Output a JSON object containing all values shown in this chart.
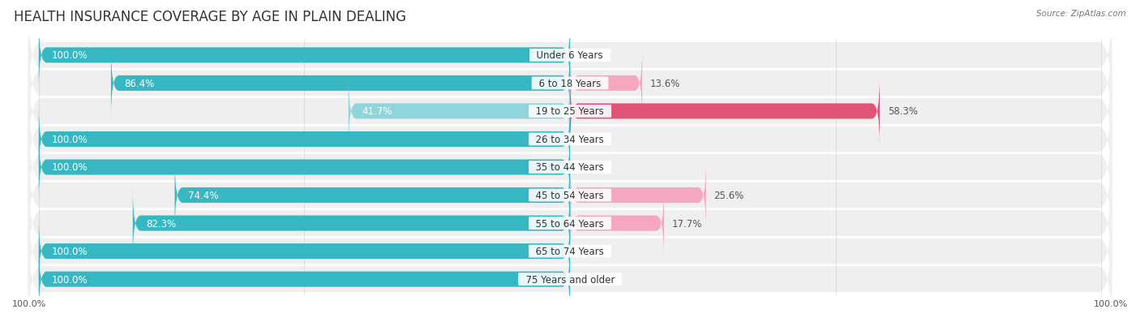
{
  "title": "HEALTH INSURANCE COVERAGE BY AGE IN PLAIN DEALING",
  "source": "Source: ZipAtlas.com",
  "categories": [
    "Under 6 Years",
    "6 to 18 Years",
    "19 to 25 Years",
    "26 to 34 Years",
    "35 to 44 Years",
    "45 to 54 Years",
    "55 to 64 Years",
    "65 to 74 Years",
    "75 Years and older"
  ],
  "with_coverage": [
    100.0,
    86.4,
    41.7,
    100.0,
    100.0,
    74.4,
    82.3,
    100.0,
    100.0
  ],
  "without_coverage": [
    0.0,
    13.6,
    58.3,
    0.0,
    0.0,
    25.6,
    17.7,
    0.0,
    0.0
  ],
  "color_with": "#36b7c1",
  "color_without_high": "#e05478",
  "color_without_low": "#f4a7be",
  "color_with_light": "#90d5db",
  "bg_color": "#ffffff",
  "row_bg": "#efefef",
  "title_fontsize": 12,
  "label_fontsize": 8.5,
  "axis_label_fontsize": 8,
  "legend_fontsize": 8.5,
  "cat_label_fontsize": 8.5
}
